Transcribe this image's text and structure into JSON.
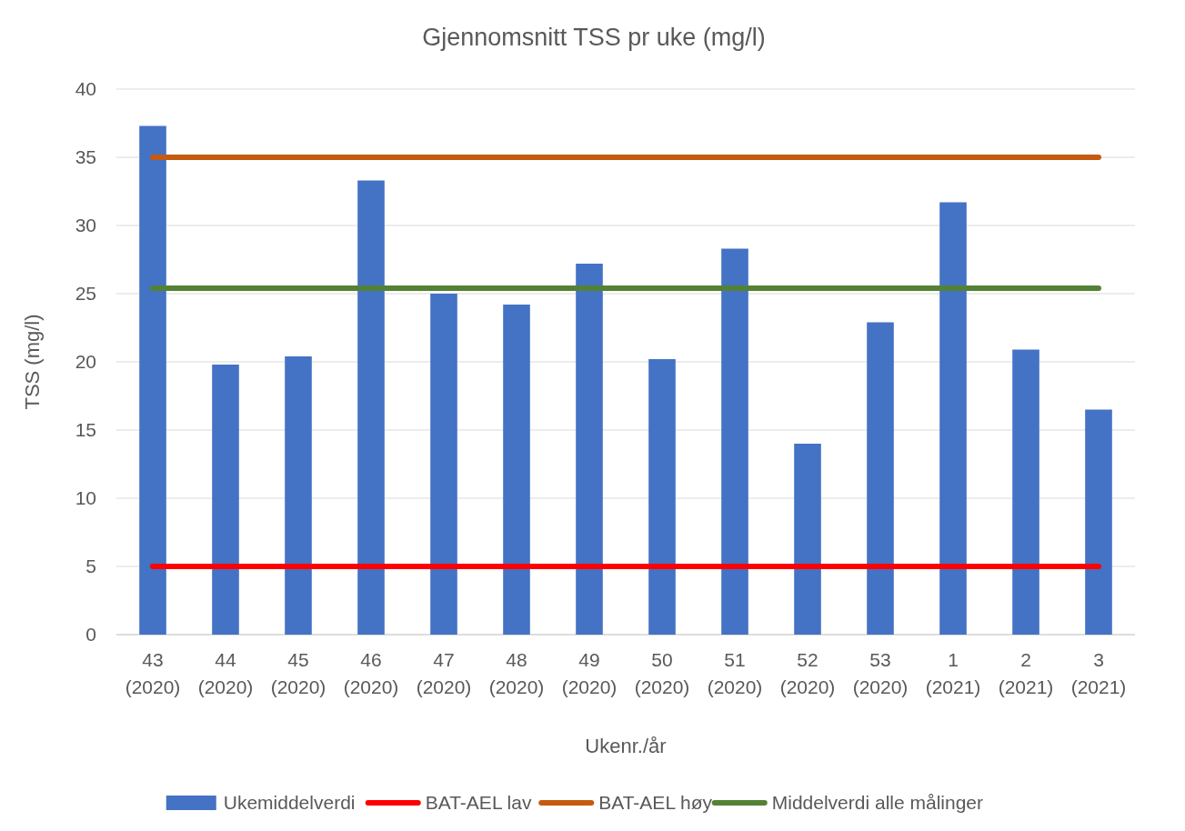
{
  "chart_data": {
    "type": "bar",
    "title": "Gjennomsnitt TSS pr uke (mg/l)",
    "xlabel": "Ukenr./år",
    "ylabel": "TSS (mg/l)",
    "categories": [
      "43 (2020)",
      "44 (2020)",
      "45 (2020)",
      "46 (2020)",
      "47 (2020)",
      "48 (2020)",
      "49 (2020)",
      "50 (2020)",
      "51 (2020)",
      "52 (2020)",
      "53 (2020)",
      "1 (2021)",
      "2 (2021)",
      "3 (2021)"
    ],
    "series": [
      {
        "name": "Ukemiddelverdi",
        "color": "#4472c4",
        "values": [
          37.3,
          19.8,
          20.4,
          33.3,
          25.0,
          24.2,
          27.2,
          20.2,
          28.3,
          14.0,
          22.9,
          31.7,
          20.9,
          16.5
        ]
      }
    ],
    "ref_lines": [
      {
        "axis": "y",
        "value": 5,
        "label": "BAT-AEL lav",
        "color": "#ff0000"
      },
      {
        "axis": "y",
        "value": 35,
        "label": "BAT-AEL høy",
        "color": "#c55a11"
      },
      {
        "axis": "y",
        "value": 25.4,
        "label": "Middelverdi alle målinger",
        "color": "#548235"
      }
    ],
    "ylim": [
      0,
      40
    ],
    "yticks": [
      0,
      5,
      10,
      15,
      20,
      25,
      30,
      35,
      40
    ],
    "grid": "y",
    "legend": "bottom"
  }
}
